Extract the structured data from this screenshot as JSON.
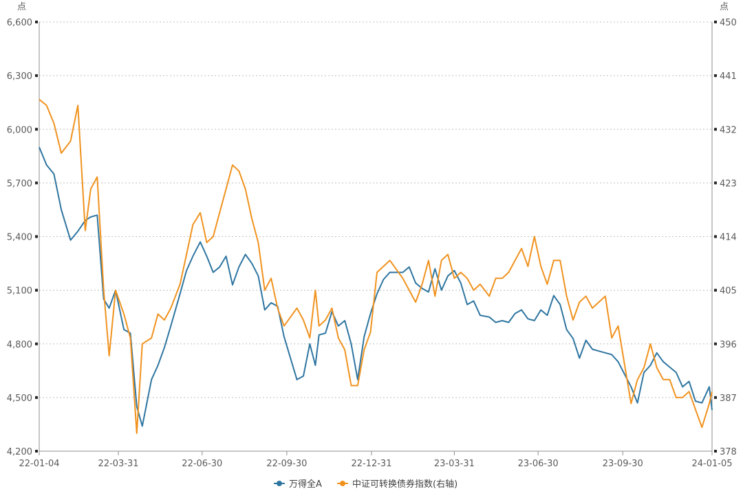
{
  "chart_data": {
    "type": "line",
    "left_axis": {
      "unit": "点",
      "ylim": [
        4200,
        6600
      ],
      "ticks": [
        "4,200",
        "4,500",
        "4,800",
        "5,100",
        "5,400",
        "5,700",
        "6,000",
        "6,300",
        "6,600"
      ],
      "tick_values": [
        4200,
        4500,
        4800,
        5100,
        5400,
        5700,
        6000,
        6300,
        6600
      ]
    },
    "right_axis": {
      "unit": "点",
      "ylim": [
        378,
        450
      ],
      "ticks": [
        "378",
        "387",
        "396",
        "405",
        "414",
        "423",
        "432",
        "441",
        "450"
      ],
      "tick_values": [
        378,
        387,
        396,
        405,
        414,
        423,
        432,
        441,
        450
      ]
    },
    "x_axis": {
      "range": [
        "2022-01-04",
        "2024-01-05"
      ],
      "ticks": [
        {
          "label": "22-01-04",
          "date": "2022-01-04"
        },
        {
          "label": "22-03-31",
          "date": "2022-03-31"
        },
        {
          "label": "22-06-30",
          "date": "2022-06-30"
        },
        {
          "label": "22-09-30",
          "date": "2022-09-30"
        },
        {
          "label": "22-12-31",
          "date": "2022-12-31"
        },
        {
          "label": "23-03-31",
          "date": "2023-03-31"
        },
        {
          "label": "23-06-30",
          "date": "2023-06-30"
        },
        {
          "label": "23-09-30",
          "date": "2023-09-30"
        },
        {
          "label": "24-01-05",
          "date": "2024-01-05"
        }
      ]
    },
    "grid": "horizontal dotted",
    "legend_position": "bottom-center",
    "series": [
      {
        "name": "万得全A",
        "axis": "left",
        "color": "#2E75A0",
        "x": [
          "2022-01-04",
          "2022-01-12",
          "2022-01-20",
          "2022-01-28",
          "2022-02-07",
          "2022-02-15",
          "2022-02-23",
          "2022-03-01",
          "2022-03-08",
          "2022-03-15",
          "2022-03-21",
          "2022-03-28",
          "2022-04-06",
          "2022-04-13",
          "2022-04-20",
          "2022-04-26",
          "2022-05-06",
          "2022-05-13",
          "2022-05-20",
          "2022-05-27",
          "2022-06-06",
          "2022-06-13",
          "2022-06-20",
          "2022-06-28",
          "2022-07-05",
          "2022-07-12",
          "2022-07-19",
          "2022-07-26",
          "2022-08-02",
          "2022-08-09",
          "2022-08-16",
          "2022-08-23",
          "2022-08-30",
          "2022-09-06",
          "2022-09-13",
          "2022-09-20",
          "2022-09-27",
          "2022-10-11",
          "2022-10-18",
          "2022-10-25",
          "2022-10-31",
          "2022-11-04",
          "2022-11-11",
          "2022-11-18",
          "2022-11-25",
          "2022-12-02",
          "2022-12-09",
          "2022-12-16",
          "2022-12-23",
          "2022-12-30",
          "2023-01-06",
          "2023-01-13",
          "2023-01-20",
          "2023-02-03",
          "2023-02-10",
          "2023-02-17",
          "2023-02-24",
          "2023-03-03",
          "2023-03-10",
          "2023-03-17",
          "2023-03-24",
          "2023-03-31",
          "2023-04-07",
          "2023-04-14",
          "2023-04-21",
          "2023-04-28",
          "2023-05-08",
          "2023-05-15",
          "2023-05-22",
          "2023-05-29",
          "2023-06-05",
          "2023-06-12",
          "2023-06-19",
          "2023-06-26",
          "2023-07-03",
          "2023-07-10",
          "2023-07-17",
          "2023-07-24",
          "2023-07-31",
          "2023-08-07",
          "2023-08-14",
          "2023-08-21",
          "2023-08-28",
          "2023-09-04",
          "2023-09-11",
          "2023-09-18",
          "2023-09-25",
          "2023-10-09",
          "2023-10-16",
          "2023-10-23",
          "2023-10-30",
          "2023-11-06",
          "2023-11-13",
          "2023-11-20",
          "2023-11-27",
          "2023-12-04",
          "2023-12-11",
          "2023-12-18",
          "2023-12-25",
          "2024-01-02",
          "2024-01-05"
        ],
        "values": [
          5900,
          5800,
          5750,
          5550,
          5380,
          5430,
          5490,
          5510,
          5520,
          5050,
          5000,
          5100,
          4880,
          4860,
          4450,
          4340,
          4600,
          4680,
          4780,
          4900,
          5080,
          5210,
          5290,
          5370,
          5290,
          5200,
          5230,
          5290,
          5130,
          5230,
          5300,
          5250,
          5180,
          4990,
          5030,
          5010,
          4840,
          4600,
          4620,
          4800,
          4680,
          4850,
          4860,
          4980,
          4900,
          4930,
          4800,
          4600,
          4840,
          4970,
          5080,
          5160,
          5200,
          5200,
          5230,
          5140,
          5110,
          5090,
          5220,
          5100,
          5180,
          5210,
          5140,
          5020,
          5040,
          4960,
          4950,
          4920,
          4930,
          4920,
          4970,
          4990,
          4940,
          4930,
          4990,
          4960,
          5070,
          5020,
          4880,
          4830,
          4720,
          4820,
          4770,
          4760,
          4750,
          4740,
          4700,
          4560,
          4470,
          4640,
          4680,
          4750,
          4700,
          4670,
          4640,
          4560,
          4590,
          4480,
          4470,
          4560,
          4430
        ]
      },
      {
        "name": "中证可转换债券指数(右轴)",
        "axis": "right",
        "color": "#F0921E",
        "x": [
          "2022-01-04",
          "2022-01-12",
          "2022-01-20",
          "2022-01-28",
          "2022-02-07",
          "2022-02-15",
          "2022-02-23",
          "2022-03-01",
          "2022-03-08",
          "2022-03-15",
          "2022-03-21",
          "2022-03-28",
          "2022-04-06",
          "2022-04-13",
          "2022-04-20",
          "2022-04-26",
          "2022-05-06",
          "2022-05-13",
          "2022-05-20",
          "2022-05-27",
          "2022-06-06",
          "2022-06-13",
          "2022-06-20",
          "2022-06-28",
          "2022-07-05",
          "2022-07-12",
          "2022-07-19",
          "2022-07-26",
          "2022-08-02",
          "2022-08-09",
          "2022-08-16",
          "2022-08-23",
          "2022-08-30",
          "2022-09-06",
          "2022-09-13",
          "2022-09-20",
          "2022-09-27",
          "2022-10-11",
          "2022-10-18",
          "2022-10-25",
          "2022-10-31",
          "2022-11-04",
          "2022-11-11",
          "2022-11-18",
          "2022-11-25",
          "2022-12-02",
          "2022-12-09",
          "2022-12-16",
          "2022-12-23",
          "2022-12-30",
          "2023-01-06",
          "2023-01-13",
          "2023-01-20",
          "2023-02-03",
          "2023-02-10",
          "2023-02-17",
          "2023-02-24",
          "2023-03-03",
          "2023-03-10",
          "2023-03-17",
          "2023-03-24",
          "2023-03-31",
          "2023-04-07",
          "2023-04-14",
          "2023-04-21",
          "2023-04-28",
          "2023-05-08",
          "2023-05-15",
          "2023-05-22",
          "2023-05-29",
          "2023-06-05",
          "2023-06-12",
          "2023-06-19",
          "2023-06-26",
          "2023-07-03",
          "2023-07-10",
          "2023-07-17",
          "2023-07-24",
          "2023-07-31",
          "2023-08-07",
          "2023-08-14",
          "2023-08-21",
          "2023-08-28",
          "2023-09-04",
          "2023-09-11",
          "2023-09-18",
          "2023-09-25",
          "2023-10-09",
          "2023-10-16",
          "2023-10-23",
          "2023-10-30",
          "2023-11-06",
          "2023-11-13",
          "2023-11-20",
          "2023-11-27",
          "2023-12-04",
          "2023-12-11",
          "2023-12-18",
          "2023-12-25",
          "2024-01-02",
          "2024-01-05"
        ],
        "values": [
          437,
          436,
          433,
          428,
          430,
          436,
          415,
          422,
          424,
          405,
          394,
          405,
          401,
          397,
          381,
          396,
          397,
          401,
          400,
          402,
          406,
          411,
          416,
          418,
          413,
          414,
          418,
          422,
          426,
          425,
          422,
          417,
          413,
          405,
          407,
          402,
          399,
          402,
          400,
          397,
          405,
          399,
          400,
          402,
          397,
          395,
          389,
          389,
          395,
          398,
          408,
          409,
          410,
          407,
          405,
          403,
          406,
          410,
          404,
          410,
          411,
          407,
          408,
          407,
          405,
          406,
          404,
          407,
          407,
          408,
          410,
          412,
          409,
          414,
          409,
          406,
          410,
          410,
          404,
          400,
          403,
          404,
          402,
          403,
          404,
          397,
          399,
          386,
          390,
          392,
          396,
          392,
          390,
          390,
          387,
          387,
          388,
          385,
          382,
          386,
          388
        ]
      }
    ]
  }
}
